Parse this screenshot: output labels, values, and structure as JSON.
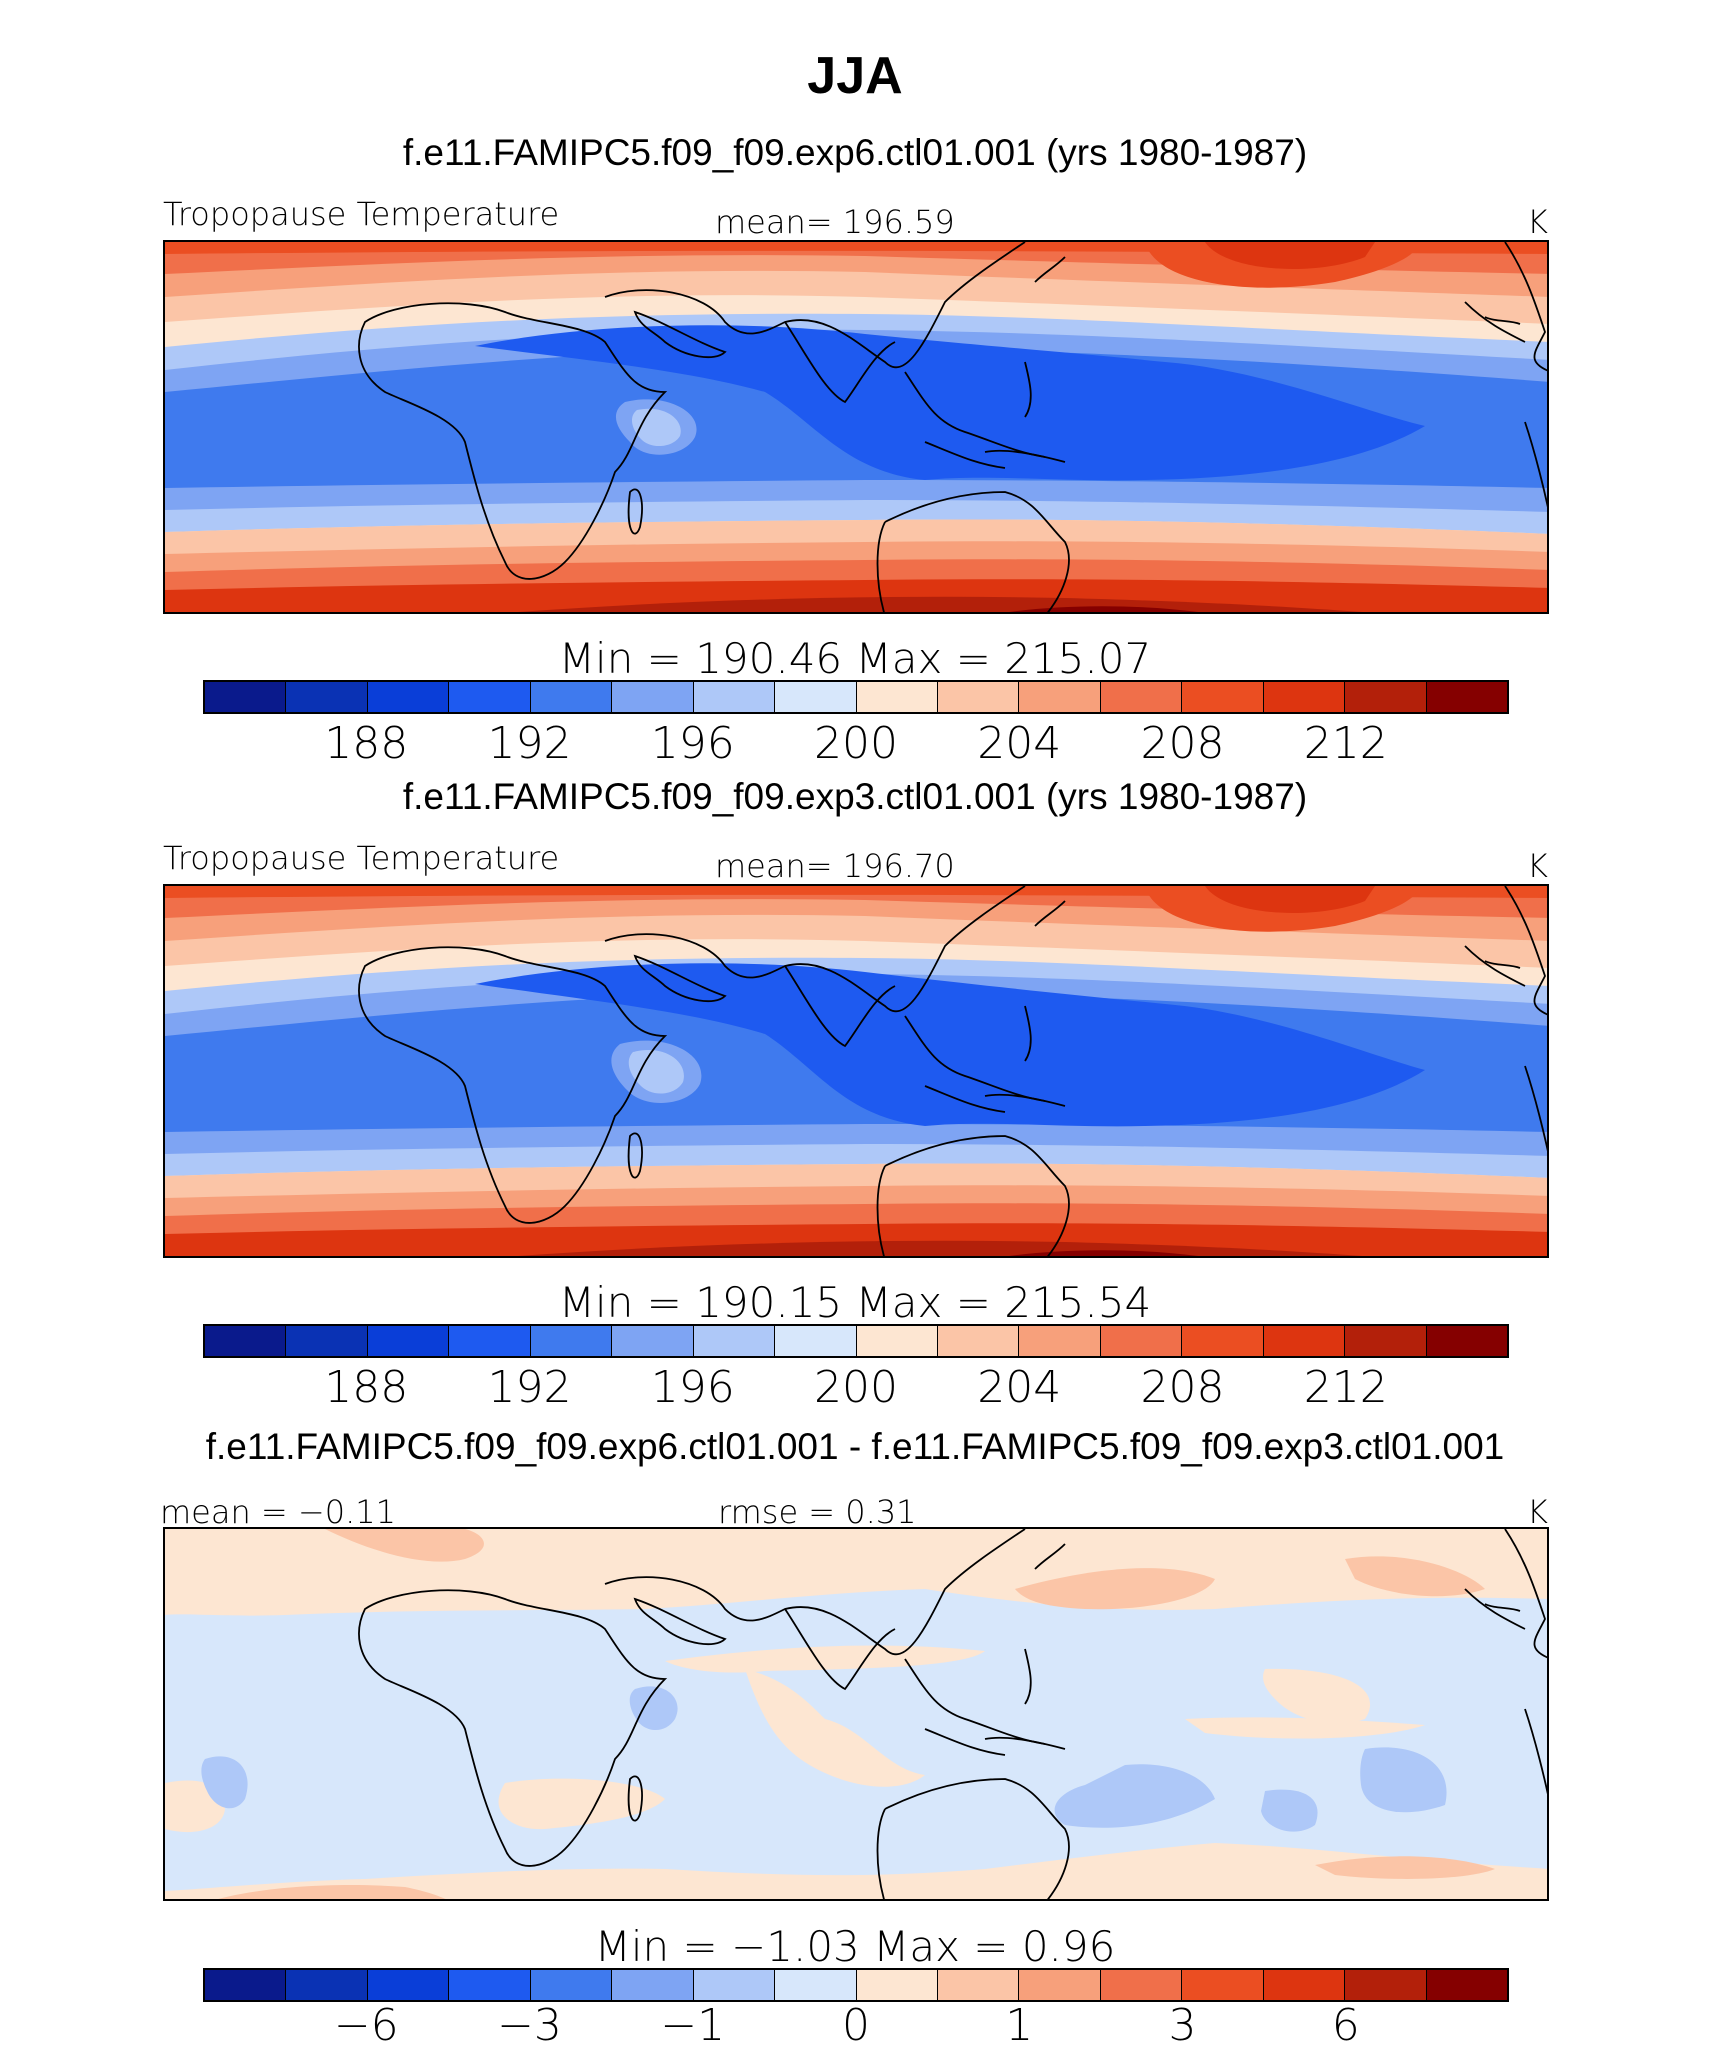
{
  "title": "JJA",
  "colors": {
    "palette": [
      "#0a1a8c",
      "#0a32b4",
      "#0a3ed8",
      "#1e5af0",
      "#3f7aee",
      "#7ea4f3",
      "#aec8f8",
      "#d7e7fb",
      "#fde6d2",
      "#fbc5a7",
      "#f7a07b",
      "#f06f4a",
      "#eb4e22",
      "#dd3510",
      "#b3200a",
      "#850000"
    ],
    "coast": "#000000"
  },
  "chart_data": [
    {
      "type": "contour-map",
      "panel_title": "f.e11.FAMIPC5.f09_f09.exp6.ctl01.001 (yrs 1980-1987)",
      "left_label": "Tropopause Temperature",
      "center_label": "mean=  196.59",
      "units": "K",
      "min_max": "Min  =  190.46  Max  =  215.07",
      "min": 190.46,
      "max": 215.07,
      "mean": 196.59,
      "colorbar_ticks": [
        "188",
        "192",
        "196",
        "200",
        "204",
        "208",
        "212"
      ],
      "levels": [
        186,
        188,
        190,
        192,
        194,
        196,
        198,
        200,
        202,
        204,
        206,
        208,
        210,
        212,
        214
      ]
    },
    {
      "type": "contour-map",
      "panel_title": "f.e11.FAMIPC5.f09_f09.exp3.ctl01.001 (yrs 1980-1987)",
      "left_label": "Tropopause Temperature",
      "center_label": "mean=  196.70",
      "units": "K",
      "min_max": "Min  =  190.15  Max  =  215.54",
      "min": 190.15,
      "max": 215.54,
      "mean": 196.7,
      "colorbar_ticks": [
        "188",
        "192",
        "196",
        "200",
        "204",
        "208",
        "212"
      ],
      "levels": [
        186,
        188,
        190,
        192,
        194,
        196,
        198,
        200,
        202,
        204,
        206,
        208,
        210,
        212,
        214
      ]
    },
    {
      "type": "contour-map",
      "panel_title": "f.e11.FAMIPC5.f09_f09.exp6.ctl01.001 - f.e11.FAMIPC5.f09_f09.exp3.ctl01.001",
      "left_label": "mean  =    −0.11",
      "center_label": "rmse  =     0.31",
      "units": "K",
      "min_max": "Min  =    −1.03  Max  =      0.96",
      "min": -1.03,
      "max": 0.96,
      "mean": -0.11,
      "rmse": 0.31,
      "colorbar_ticks": [
        "−6",
        "−3",
        "−1",
        "0",
        "1",
        "3",
        "6"
      ],
      "levels": [
        -8,
        -6,
        -4,
        -3,
        -2,
        -1,
        -0.5,
        0,
        0.5,
        1,
        2,
        3,
        4,
        6,
        8
      ]
    }
  ]
}
